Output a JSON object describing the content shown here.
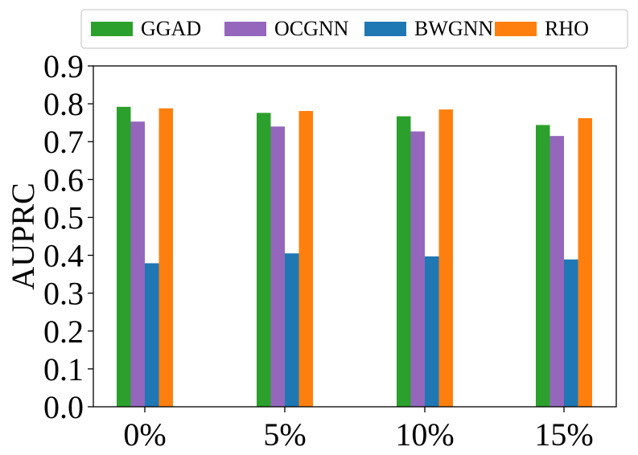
{
  "chart_data": {
    "type": "bar",
    "categories": [
      "0%",
      "5%",
      "10%",
      "15%"
    ],
    "series": [
      {
        "name": "GGAD",
        "color": "#2ca02c",
        "values": [
          0.792,
          0.776,
          0.767,
          0.744
        ]
      },
      {
        "name": "OCGNN",
        "color": "#9467bd",
        "values": [
          0.753,
          0.74,
          0.727,
          0.715
        ]
      },
      {
        "name": "BWGNN",
        "color": "#1f77b4",
        "values": [
          0.379,
          0.405,
          0.397,
          0.389
        ]
      },
      {
        "name": "RHO",
        "color": "#ff7f0e",
        "values": [
          0.788,
          0.781,
          0.785,
          0.762
        ]
      }
    ],
    "xlabel": "",
    "ylabel": "AUPRC",
    "ylim": [
      0.0,
      0.9
    ],
    "yticks": [
      "0.0",
      "0.1",
      "0.2",
      "0.3",
      "0.4",
      "0.5",
      "0.6",
      "0.7",
      "0.8",
      "0.9"
    ],
    "grid": false,
    "legend_placement": "top-center"
  }
}
